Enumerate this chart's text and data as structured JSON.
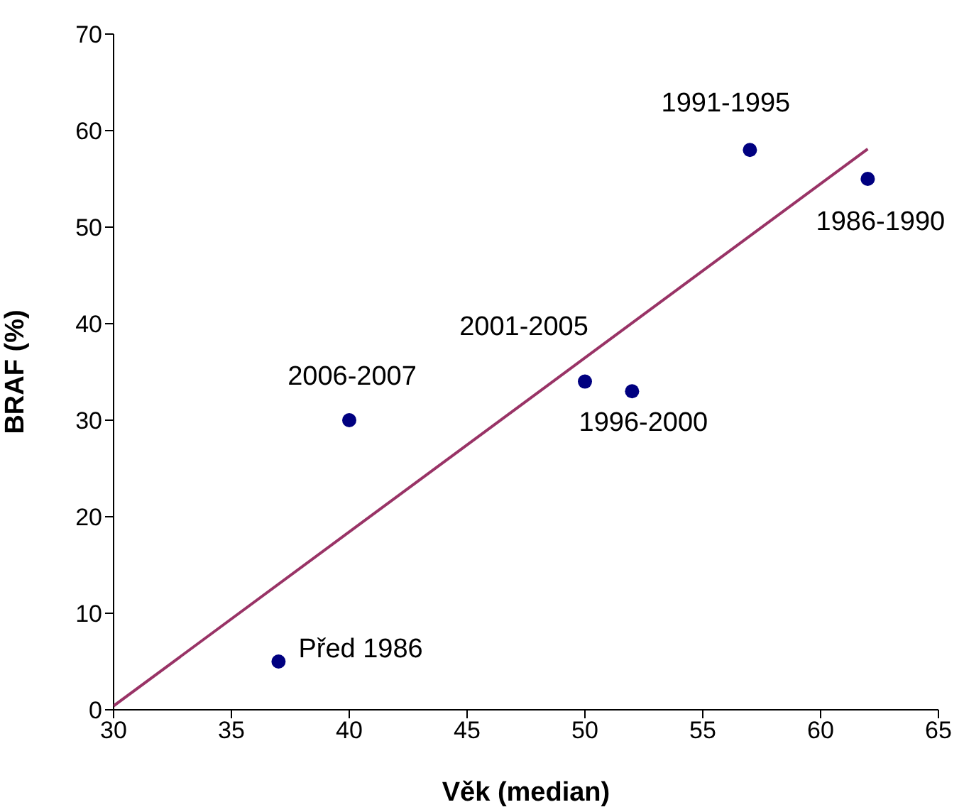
{
  "chart_data": {
    "type": "scatter",
    "xlabel": "Věk (median)",
    "ylabel": "BRAF (%)",
    "xlim": [
      30,
      65
    ],
    "xticks": [
      30,
      35,
      40,
      45,
      50,
      55,
      60,
      65
    ],
    "ylim": [
      0,
      70
    ],
    "yticks": [
      0,
      10,
      20,
      30,
      40,
      50,
      60,
      70
    ],
    "grid": false,
    "legend": false,
    "series": [
      {
        "marker": "circle",
        "color": "#000080",
        "x": [
          37,
          40,
          50,
          52,
          57,
          62
        ],
        "values": [
          5,
          30,
          34,
          33,
          58,
          55
        ]
      },
      {
        "type": "line",
        "color": "#993366",
        "x": [
          30,
          62
        ],
        "values": [
          0.4,
          58.1
        ]
      }
    ],
    "annotations": [
      {
        "text": "Před 1986",
        "x": 37,
        "y": 5
      },
      {
        "text": "2006-2007",
        "x": 40,
        "y": 30
      },
      {
        "text": "2001-2005",
        "x": 50,
        "y": 34
      },
      {
        "text": "1996-2000",
        "x": 52,
        "y": 33
      },
      {
        "text": "1991-1995",
        "x": 57,
        "y": 58
      },
      {
        "text": "1986-1990",
        "x": 62,
        "y": 55
      }
    ]
  }
}
